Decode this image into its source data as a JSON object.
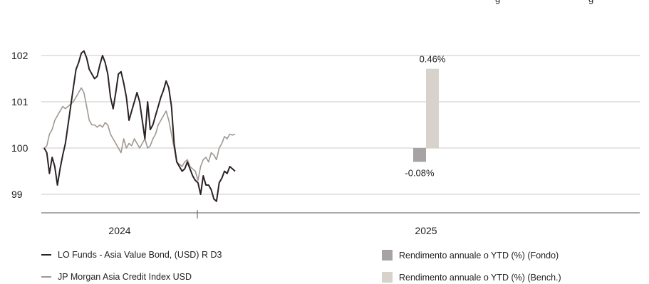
{
  "header_fragments": [
    "g",
    "g"
  ],
  "colors": {
    "fund_line": "#2b2224",
    "bench_line": "#a09790",
    "fund_bar": "#a7a3a4",
    "bench_bar": "#d7d2cc",
    "grid": "#c8c8c8",
    "axis": "#555555"
  },
  "chart_data": [
    {
      "type": "line",
      "title": "",
      "xlabel": "",
      "ylabel": "",
      "ylim": [
        98.2,
        103.0
      ],
      "yticks": [
        99,
        100,
        101,
        102
      ],
      "ytick_labels": [
        "99",
        "100",
        "101",
        "102"
      ],
      "x_tick_labels": [
        "2024"
      ],
      "grid": true,
      "legend_position": "bottom",
      "series": [
        {
          "name": "LO Funds - Asia Value Bond, (USD) R D3",
          "color": "#2b2224",
          "x": [
            0,
            1,
            2,
            3,
            4,
            5,
            6,
            7,
            8,
            9,
            10,
            11,
            12,
            13,
            14,
            15,
            16,
            17,
            18,
            19,
            20,
            21,
            22,
            23,
            24,
            25,
            26,
            27,
            28,
            29,
            30,
            31,
            32,
            33,
            34,
            35,
            36,
            37,
            38,
            39,
            40,
            41,
            42,
            43,
            44,
            45,
            46,
            47,
            48,
            49,
            50,
            51,
            52,
            53,
            54,
            55,
            56,
            57,
            58,
            59,
            60,
            61,
            62,
            63,
            64,
            65,
            66,
            67,
            68,
            69,
            70,
            71,
            72
          ],
          "y": [
            100.0,
            99.9,
            99.45,
            99.8,
            99.6,
            99.2,
            99.55,
            99.85,
            100.1,
            100.5,
            100.9,
            101.3,
            101.7,
            101.85,
            102.05,
            102.1,
            101.95,
            101.7,
            101.6,
            101.5,
            101.55,
            101.8,
            102.0,
            101.85,
            101.6,
            101.1,
            100.85,
            101.2,
            101.6,
            101.65,
            101.4,
            101.1,
            100.6,
            100.8,
            101.0,
            101.2,
            101.0,
            100.6,
            100.2,
            101.0,
            100.4,
            100.5,
            100.7,
            100.9,
            101.1,
            101.25,
            101.45,
            101.3,
            100.9,
            100.1,
            99.7,
            99.6,
            99.5,
            99.55,
            99.7,
            99.55,
            99.4,
            99.3,
            99.25,
            99.0,
            99.4,
            99.2,
            99.2,
            99.1,
            98.9,
            98.85,
            99.25,
            99.35,
            99.5,
            99.45,
            99.6,
            99.55,
            99.5
          ]
        },
        {
          "name": "JP Morgan Asia Credit Index USD",
          "color": "#a09790",
          "x": [
            0,
            1,
            2,
            3,
            4,
            5,
            6,
            7,
            8,
            9,
            10,
            11,
            12,
            13,
            14,
            15,
            16,
            17,
            18,
            19,
            20,
            21,
            22,
            23,
            24,
            25,
            26,
            27,
            28,
            29,
            30,
            31,
            32,
            33,
            34,
            35,
            36,
            37,
            38,
            39,
            40,
            41,
            42,
            43,
            44,
            45,
            46,
            47,
            48,
            49,
            50,
            51,
            52,
            53,
            54,
            55,
            56,
            57,
            58,
            59,
            60,
            61,
            62,
            63,
            64,
            65,
            66,
            67,
            68,
            69,
            70,
            71,
            72
          ],
          "y": [
            100.0,
            100.05,
            100.3,
            100.4,
            100.6,
            100.7,
            100.8,
            100.9,
            100.85,
            100.9,
            100.95,
            101.0,
            101.1,
            101.2,
            101.3,
            101.2,
            100.9,
            100.6,
            100.5,
            100.5,
            100.45,
            100.5,
            100.45,
            100.55,
            100.5,
            100.3,
            100.2,
            100.1,
            100.0,
            99.9,
            100.2,
            100.0,
            100.1,
            100.05,
            100.2,
            100.1,
            100.0,
            100.1,
            100.2,
            100.0,
            100.05,
            100.2,
            100.3,
            100.5,
            100.6,
            100.7,
            100.8,
            100.6,
            100.3,
            100.0,
            99.7,
            99.65,
            99.6,
            99.7,
            99.75,
            99.6,
            99.55,
            99.5,
            99.3,
            99.6,
            99.75,
            99.8,
            99.7,
            99.9,
            99.85,
            99.75,
            100.0,
            100.1,
            100.25,
            100.2,
            100.3,
            100.28,
            100.3
          ]
        }
      ]
    },
    {
      "type": "bar",
      "title": "",
      "xlabel": "",
      "ylabel": "",
      "categories": [
        "2025"
      ],
      "ylim": [
        -0.5,
        0.68
      ],
      "series": [
        {
          "name": "Rendimento annuale o YTD (%) (Fondo)",
          "color": "#a7a3a4",
          "values": [
            -0.08
          ],
          "label": "-0.08%"
        },
        {
          "name": "Rendimento annuale o YTD (%) (Bench.)",
          "color": "#d7d2cc",
          "values": [
            0.46
          ],
          "label": "0.46%"
        }
      ]
    }
  ]
}
